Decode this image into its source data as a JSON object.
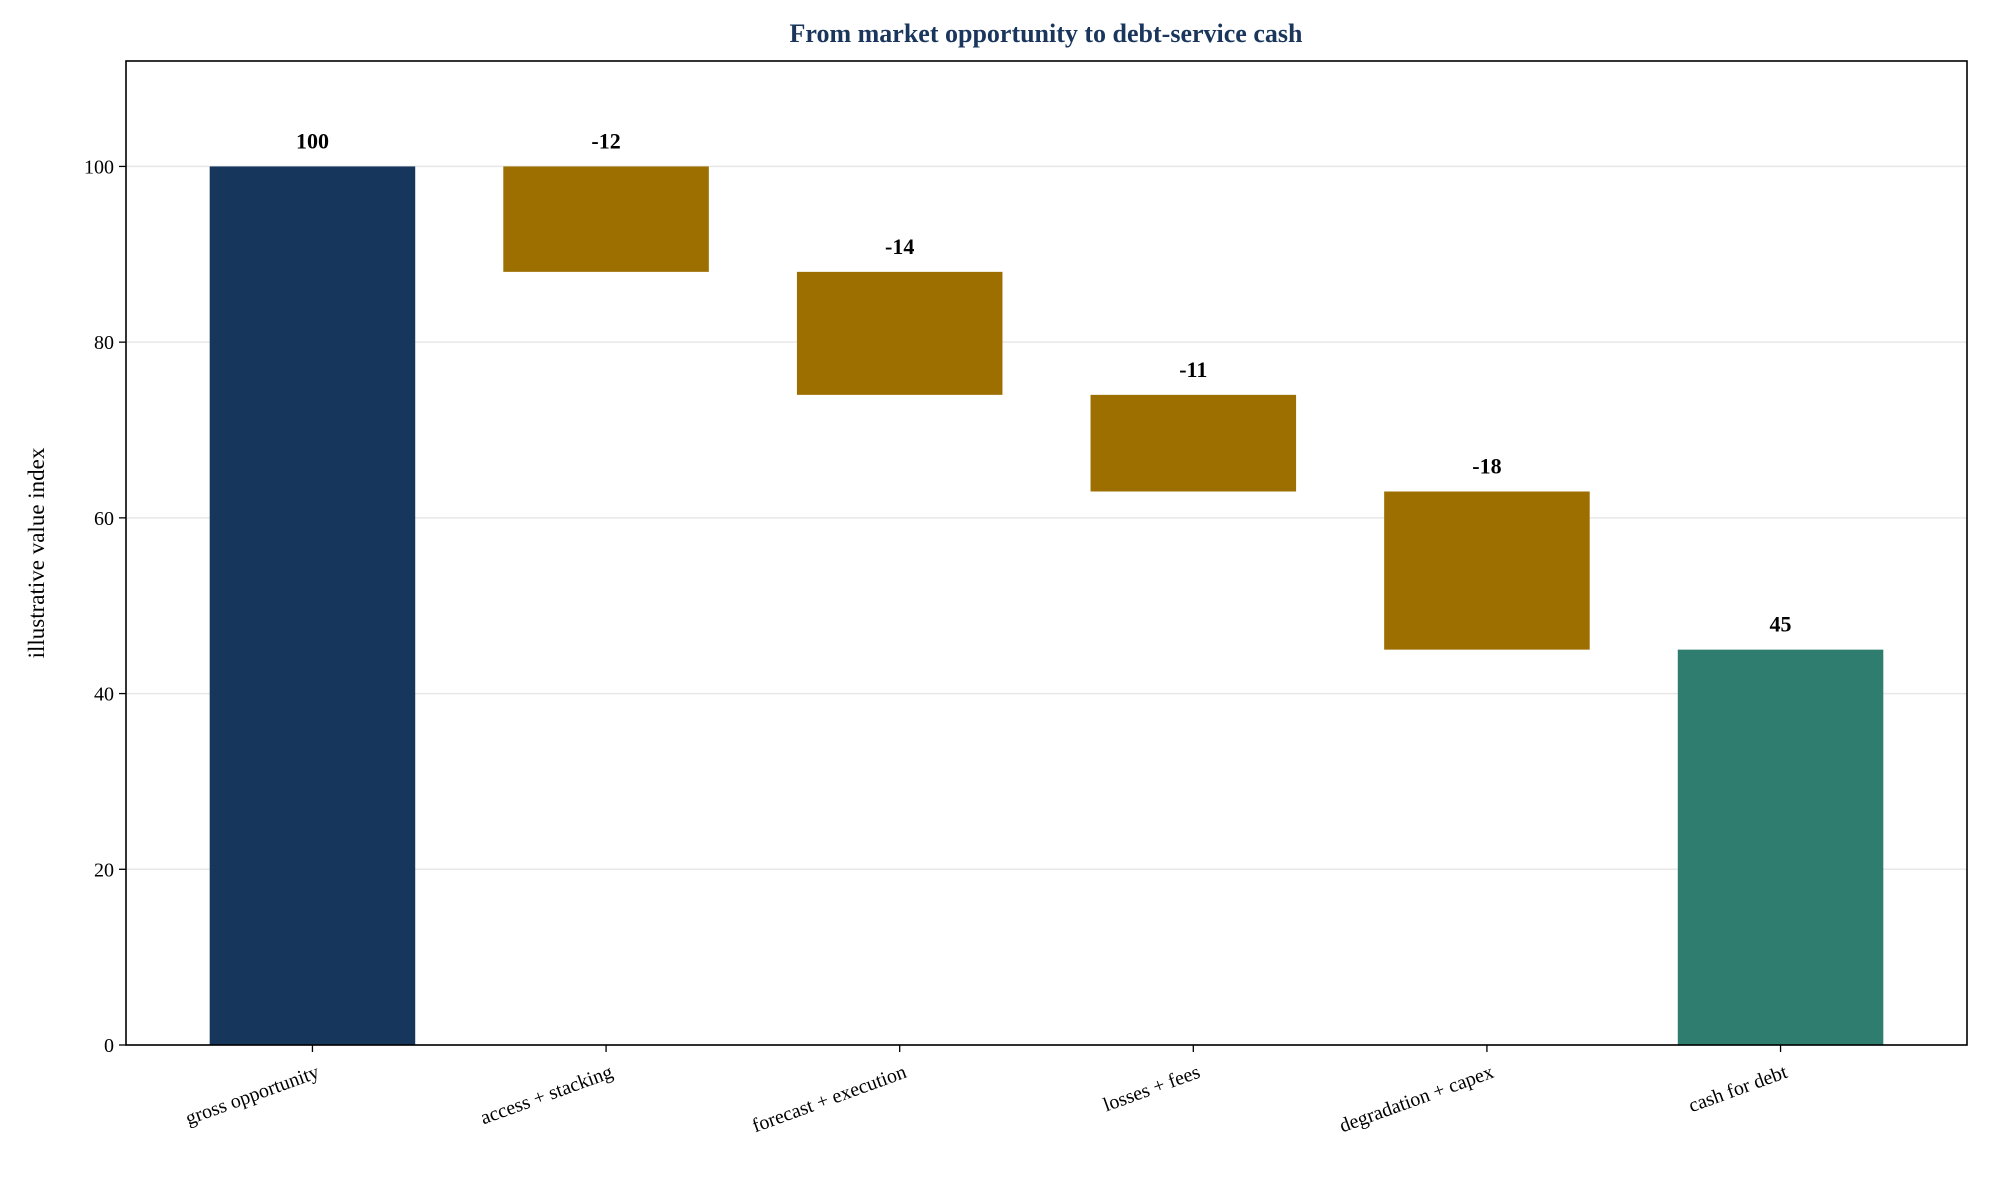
{
  "chart_data": {
    "type": "waterfall",
    "title": "From market opportunity to debt-service cash",
    "ylabel": "illustrative value index",
    "categories": [
      "gross opportunity",
      "access + stacking",
      "forecast + execution",
      "losses + fees",
      "degradation + capex",
      "cash for debt"
    ],
    "values": [
      100,
      -12,
      -14,
      -11,
      -18,
      45
    ],
    "measure": [
      "absolute",
      "relative",
      "relative",
      "relative",
      "relative",
      "total"
    ],
    "colors": [
      "#17365c",
      "#9c6f00",
      "#9c6f00",
      "#9c6f00",
      "#9c6f00",
      "#2e7d6e"
    ],
    "ylim": [
      0,
      112
    ],
    "yticks": [
      0,
      20,
      40,
      60,
      80,
      100
    ],
    "grid": true
  }
}
